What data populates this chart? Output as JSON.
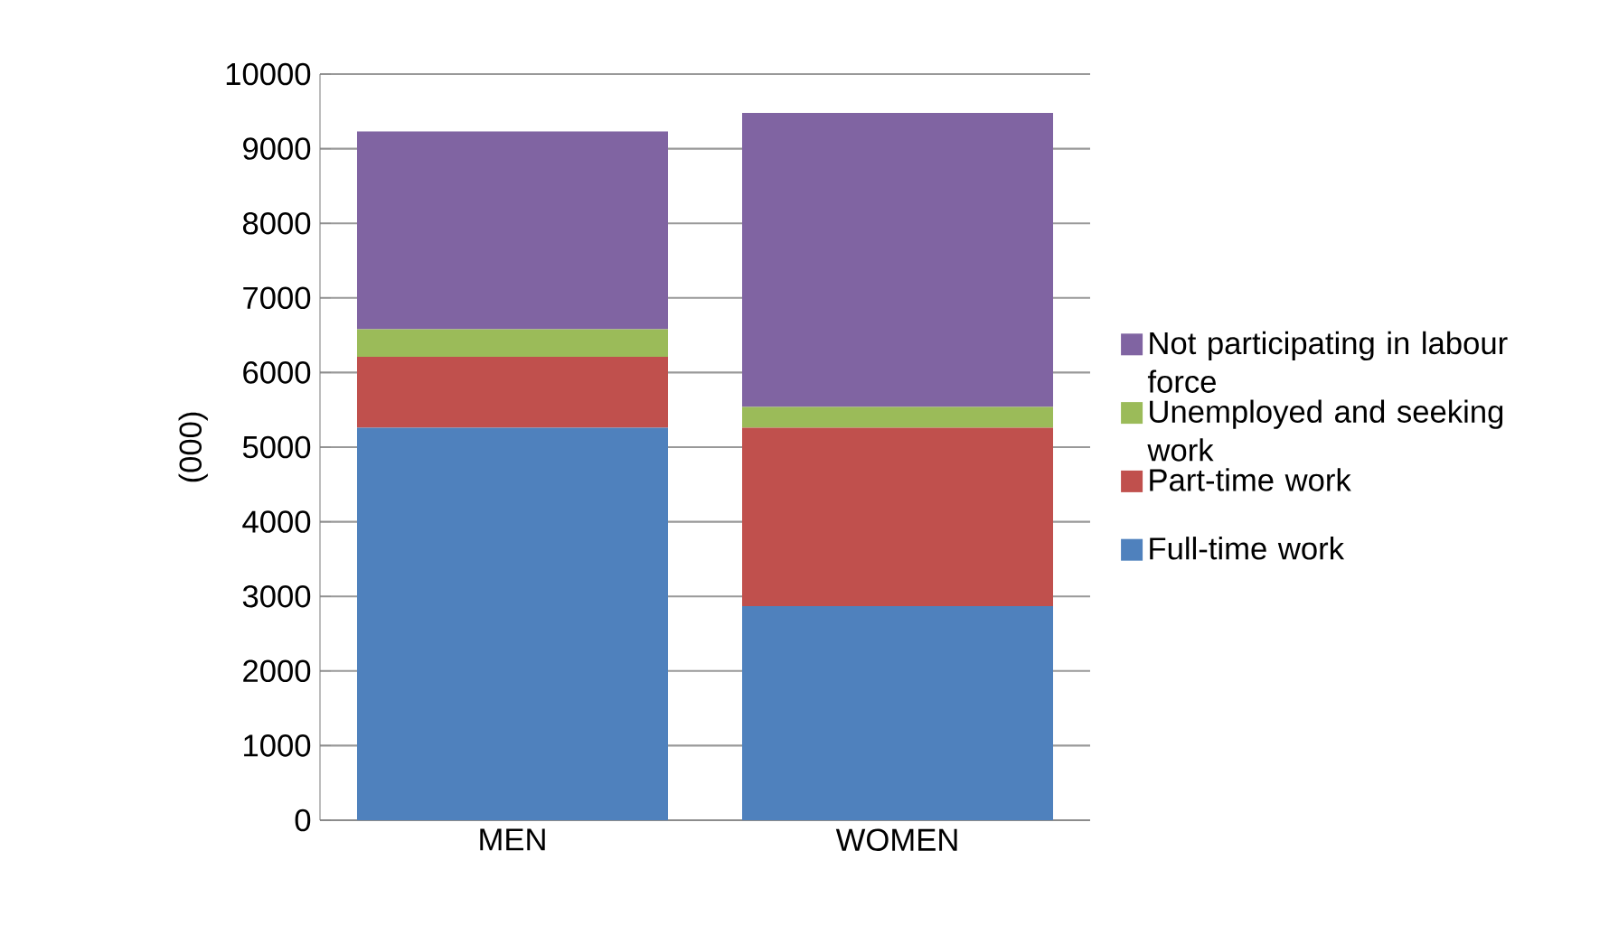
{
  "chart_data": {
    "type": "bar",
    "stacked": true,
    "ylabel": "(000)",
    "categories": [
      "MEN",
      "WOMEN"
    ],
    "series": [
      {
        "name": "Full-time work",
        "color": "#4f81bd",
        "values": [
          5260,
          2870
        ]
      },
      {
        "name": "Part-time work",
        "color": "#c0504d",
        "values": [
          950,
          2390
        ]
      },
      {
        "name": "Unemployed and seeking work",
        "color": "#9bbb59",
        "values": [
          370,
          280
        ]
      },
      {
        "name": "Not participating in labour force",
        "color": "#8064a2",
        "values": [
          2650,
          3940
        ]
      }
    ],
    "ylim": [
      0,
      10000
    ],
    "yticks": [
      0,
      1000,
      2000,
      3000,
      4000,
      5000,
      6000,
      7000,
      8000,
      9000,
      10000
    ],
    "grid": "y",
    "legend": "right"
  }
}
